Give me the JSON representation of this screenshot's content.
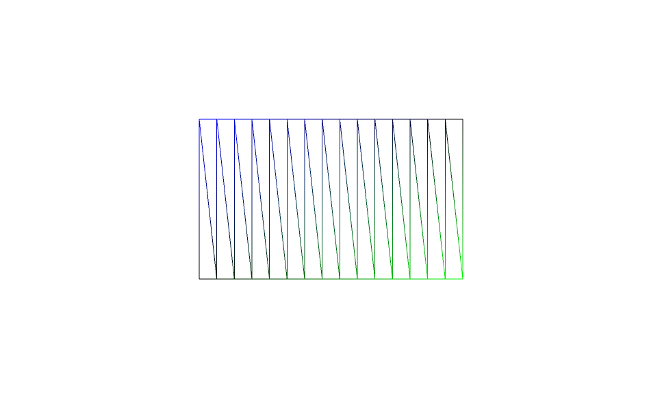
{
  "diagram": {
    "type": "triangle-strip-wireframe",
    "columns": 15,
    "rows": 1,
    "background_color": "#ffffff",
    "gradient": {
      "top_left_color": "#0000ff",
      "bottom_right_color": "#00ff00",
      "dark_color": "#000000"
    }
  }
}
